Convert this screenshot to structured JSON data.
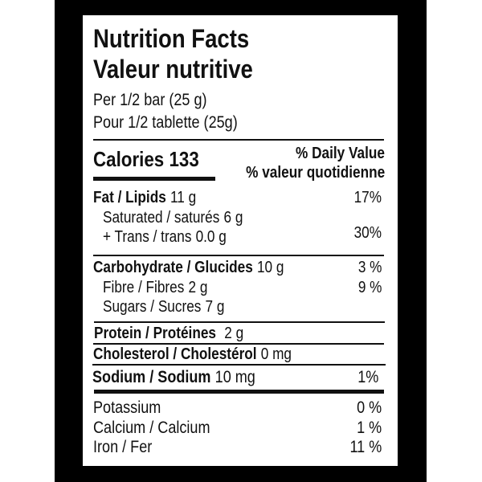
{
  "title_en": "Nutrition Facts",
  "title_fr": "Valeur nutritive",
  "serving_en": "Per 1/2 bar (25 g)",
  "serving_fr": "Pour 1/2 tablette (25g)",
  "calories_label": "Calories 133",
  "dv_en": "% Daily Value",
  "dv_fr": "% valeur quotidienne",
  "rows": {
    "fat": {
      "label": "Fat / Lipids",
      "amount": "11 g",
      "dv": "17%"
    },
    "saturated": {
      "label": "Saturated / saturés",
      "amount": "6 g"
    },
    "trans": {
      "label": "+ Trans / trans",
      "amount": "0.0 g",
      "dv": "30%"
    },
    "carb": {
      "label": "Carbohydrate / Glucides",
      "amount": "10 g",
      "dv": "3 %"
    },
    "fibre": {
      "label": "Fibre / Fibres",
      "amount": "2 g",
      "dv": "9 %"
    },
    "sugars": {
      "label": "Sugars / Sucres",
      "amount": "7 g"
    },
    "protein": {
      "label": "Protein / Protéines",
      "amount": "2 g"
    },
    "cholesterol": {
      "label": "Cholesterol / Cholestérol",
      "amount": "0 mg"
    },
    "sodium": {
      "label": "Sodium / Sodium",
      "amount": "10 mg",
      "dv": "1%"
    },
    "potassium": {
      "label": "Potassium",
      "dv": "0 %"
    },
    "calcium": {
      "label": "Calcium / Calcium",
      "dv": "1 %"
    },
    "iron": {
      "label": "Iron / Fer",
      "dv": "11 %"
    }
  },
  "colors": {
    "frame": "#000000",
    "panel": "#ffffff",
    "text": "#111111"
  }
}
